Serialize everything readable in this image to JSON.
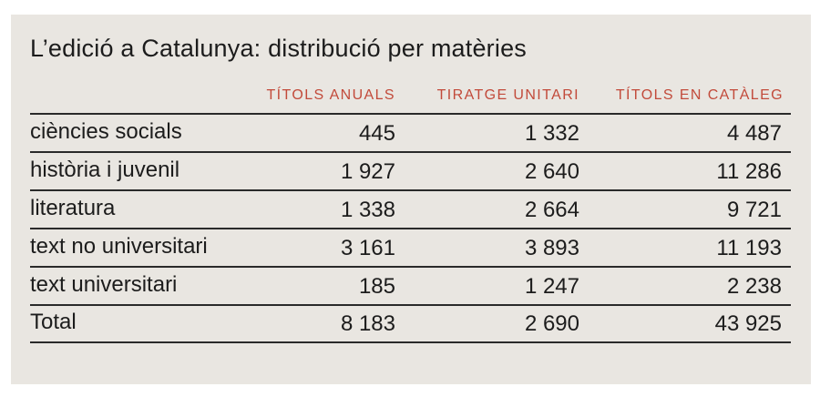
{
  "table": {
    "title": "L’edició a Catalunya: distribució per matèries",
    "columns": [
      "TÍTOLS ANUALS",
      "TIRATGE UNITARI",
      "TÍTOLS EN CATÀLEG"
    ],
    "rows": [
      {
        "label": "ciències socials",
        "values": [
          "445",
          "1 332",
          "4 487"
        ]
      },
      {
        "label": "història i juvenil",
        "values": [
          "1 927",
          "2 640",
          "11 286"
        ]
      },
      {
        "label": "literatura",
        "values": [
          "1 338",
          "2 664",
          "9 721"
        ]
      },
      {
        "label": "text no universitari",
        "values": [
          "3 161",
          "3 893",
          "11 193"
        ]
      },
      {
        "label": "text universitari",
        "values": [
          "185",
          "1 247",
          "2 238"
        ]
      }
    ],
    "total": {
      "label": "Total",
      "values": [
        "8 183",
        "2 690",
        "43 925"
      ]
    }
  },
  "colors": {
    "background": "#e9e6e1",
    "header_text": "#c24a3a",
    "body_text": "#1c1c1c",
    "rules": "#2a2a2a"
  },
  "chart_data": {
    "type": "table",
    "title": "L’edició a Catalunya: distribució per matèries",
    "categories": [
      "ciències socials",
      "història i juvenil",
      "literatura",
      "text no universitari",
      "text universitari",
      "Total"
    ],
    "series": [
      {
        "name": "TÍTOLS ANUALS",
        "values": [
          445,
          1927,
          1338,
          3161,
          185,
          8183
        ]
      },
      {
        "name": "TIRATGE UNITARI",
        "values": [
          1332,
          2640,
          2664,
          3893,
          1247,
          2690
        ]
      },
      {
        "name": "TÍTOLS EN CATÀLEG",
        "values": [
          4487,
          11286,
          9721,
          11193,
          2238,
          43925
        ]
      }
    ]
  }
}
